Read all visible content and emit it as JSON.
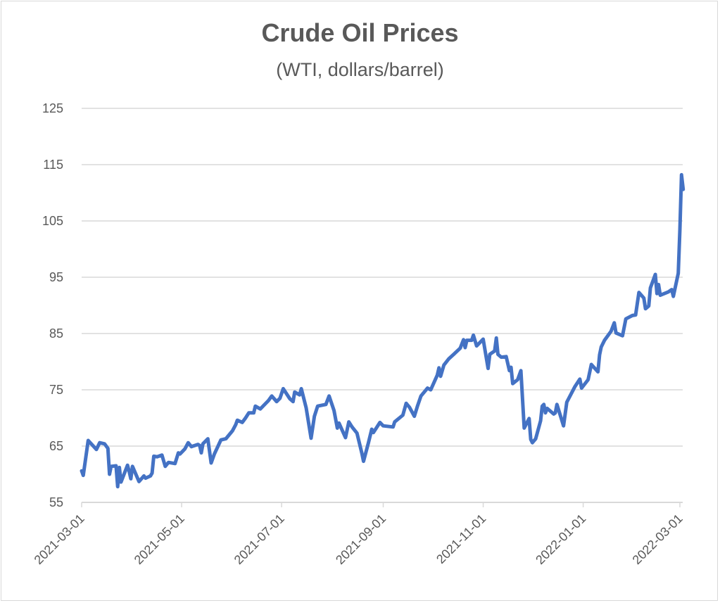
{
  "chart_data": {
    "type": "line",
    "title": "Crude Oil Prices",
    "subtitle": "(WTI, dollars/barrel)",
    "xlabel": "",
    "ylabel": "",
    "ylim": [
      55,
      125
    ],
    "yticks": [
      "55",
      "65",
      "75",
      "85",
      "95",
      "105",
      "115",
      "125"
    ],
    "xlim": [
      "2021-03-01",
      "2022-03-01"
    ],
    "xticks": [
      "2021-03-01",
      "2021-05-01",
      "2021-07-01",
      "2021-09-01",
      "2021-11-01",
      "2022-01-01",
      "2022-03-01"
    ],
    "grid": true,
    "legend": "none",
    "color": "#4472C4",
    "series": [
      {
        "name": "WTI",
        "points": [
          [
            "2021-03-01",
            60.6
          ],
          [
            "2021-03-02",
            59.8
          ],
          [
            "2021-03-05",
            66.0
          ],
          [
            "2021-03-10",
            64.4
          ],
          [
            "2021-03-12",
            65.6
          ],
          [
            "2021-03-15",
            65.4
          ],
          [
            "2021-03-17",
            64.6
          ],
          [
            "2021-03-18",
            60.0
          ],
          [
            "2021-03-19",
            61.4
          ],
          [
            "2021-03-22",
            61.5
          ],
          [
            "2021-03-23",
            57.8
          ],
          [
            "2021-03-24",
            61.2
          ],
          [
            "2021-03-25",
            58.6
          ],
          [
            "2021-03-29",
            61.6
          ],
          [
            "2021-03-30",
            60.5
          ],
          [
            "2021-03-31",
            59.2
          ],
          [
            "2021-04-01",
            61.4
          ],
          [
            "2021-04-05",
            58.7
          ],
          [
            "2021-04-08",
            59.7
          ],
          [
            "2021-04-09",
            59.3
          ],
          [
            "2021-04-12",
            59.7
          ],
          [
            "2021-04-13",
            60.2
          ],
          [
            "2021-04-14",
            63.2
          ],
          [
            "2021-04-16",
            63.1
          ],
          [
            "2021-04-19",
            63.4
          ],
          [
            "2021-04-21",
            61.4
          ],
          [
            "2021-04-23",
            62.1
          ],
          [
            "2021-04-27",
            61.9
          ],
          [
            "2021-04-29",
            63.8
          ],
          [
            "2021-04-30",
            63.6
          ],
          [
            "2021-05-03",
            64.5
          ],
          [
            "2021-05-05",
            65.6
          ],
          [
            "2021-05-07",
            64.9
          ],
          [
            "2021-05-11",
            65.3
          ],
          [
            "2021-05-12",
            65.1
          ],
          [
            "2021-05-13",
            63.8
          ],
          [
            "2021-05-14",
            65.4
          ],
          [
            "2021-05-17",
            66.3
          ],
          [
            "2021-05-19",
            62.0
          ],
          [
            "2021-05-21",
            63.6
          ],
          [
            "2021-05-25",
            66.1
          ],
          [
            "2021-05-28",
            66.3
          ],
          [
            "2021-06-01",
            67.7
          ],
          [
            "2021-06-03",
            68.8
          ],
          [
            "2021-06-04",
            69.6
          ],
          [
            "2021-06-07",
            69.2
          ],
          [
            "2021-06-09",
            70.0
          ],
          [
            "2021-06-11",
            70.9
          ],
          [
            "2021-06-14",
            70.9
          ],
          [
            "2021-06-15",
            72.1
          ],
          [
            "2021-06-18",
            71.6
          ],
          [
            "2021-06-23",
            73.1
          ],
          [
            "2021-06-25",
            73.9
          ],
          [
            "2021-06-28",
            72.9
          ],
          [
            "2021-06-30",
            73.5
          ],
          [
            "2021-07-02",
            75.2
          ],
          [
            "2021-07-06",
            73.4
          ],
          [
            "2021-07-08",
            72.9
          ],
          [
            "2021-07-09",
            74.6
          ],
          [
            "2021-07-12",
            74.1
          ],
          [
            "2021-07-13",
            75.2
          ],
          [
            "2021-07-16",
            71.8
          ],
          [
            "2021-07-19",
            66.4
          ],
          [
            "2021-07-21",
            70.3
          ],
          [
            "2021-07-23",
            72.1
          ],
          [
            "2021-07-28",
            72.4
          ],
          [
            "2021-07-30",
            73.9
          ],
          [
            "2021-08-02",
            71.3
          ],
          [
            "2021-08-04",
            68.2
          ],
          [
            "2021-08-05",
            69.1
          ],
          [
            "2021-08-09",
            66.5
          ],
          [
            "2021-08-11",
            69.3
          ],
          [
            "2021-08-13",
            68.4
          ],
          [
            "2021-08-16",
            67.3
          ],
          [
            "2021-08-19",
            63.7
          ],
          [
            "2021-08-20",
            62.3
          ],
          [
            "2021-08-23",
            65.6
          ],
          [
            "2021-08-25",
            68.0
          ],
          [
            "2021-08-26",
            67.4
          ],
          [
            "2021-08-30",
            69.2
          ],
          [
            "2021-09-01",
            68.6
          ],
          [
            "2021-09-07",
            68.4
          ],
          [
            "2021-09-08",
            69.3
          ],
          [
            "2021-09-13",
            70.5
          ],
          [
            "2021-09-15",
            72.6
          ],
          [
            "2021-09-17",
            71.9
          ],
          [
            "2021-09-20",
            70.3
          ],
          [
            "2021-09-22",
            72.2
          ],
          [
            "2021-09-24",
            73.9
          ],
          [
            "2021-09-28",
            75.3
          ],
          [
            "2021-09-30",
            75.0
          ],
          [
            "2021-10-04",
            77.6
          ],
          [
            "2021-10-05",
            78.9
          ],
          [
            "2021-10-06",
            77.4
          ],
          [
            "2021-10-08",
            79.4
          ],
          [
            "2021-10-11",
            80.5
          ],
          [
            "2021-10-14",
            81.3
          ],
          [
            "2021-10-18",
            82.4
          ],
          [
            "2021-10-20",
            83.9
          ],
          [
            "2021-10-21",
            82.5
          ],
          [
            "2021-10-22",
            83.8
          ],
          [
            "2021-10-25",
            83.8
          ],
          [
            "2021-10-26",
            84.7
          ],
          [
            "2021-10-28",
            82.8
          ],
          [
            "2021-11-01",
            84.0
          ],
          [
            "2021-11-04",
            78.8
          ],
          [
            "2021-11-05",
            81.3
          ],
          [
            "2021-11-08",
            81.9
          ],
          [
            "2021-11-09",
            84.2
          ],
          [
            "2021-11-10",
            81.3
          ],
          [
            "2021-11-12",
            80.8
          ],
          [
            "2021-11-15",
            80.9
          ],
          [
            "2021-11-17",
            78.4
          ],
          [
            "2021-11-18",
            79.0
          ],
          [
            "2021-11-19",
            76.1
          ],
          [
            "2021-11-22",
            76.8
          ],
          [
            "2021-11-24",
            78.4
          ],
          [
            "2021-11-26",
            68.2
          ],
          [
            "2021-11-29",
            69.9
          ],
          [
            "2021-11-30",
            66.2
          ],
          [
            "2021-12-01",
            65.6
          ],
          [
            "2021-12-03",
            66.3
          ],
          [
            "2021-12-06",
            69.5
          ],
          [
            "2021-12-07",
            72.1
          ],
          [
            "2021-12-08",
            72.4
          ],
          [
            "2021-12-09",
            70.9
          ],
          [
            "2021-12-10",
            71.7
          ],
          [
            "2021-12-14",
            70.7
          ],
          [
            "2021-12-15",
            70.9
          ],
          [
            "2021-12-16",
            72.4
          ],
          [
            "2021-12-20",
            68.6
          ],
          [
            "2021-12-22",
            72.8
          ],
          [
            "2021-12-27",
            75.6
          ],
          [
            "2021-12-30",
            76.9
          ],
          [
            "2021-12-31",
            75.3
          ],
          [
            "2022-01-04",
            76.8
          ],
          [
            "2022-01-06",
            79.5
          ],
          [
            "2022-01-10",
            78.2
          ],
          [
            "2022-01-11",
            81.2
          ],
          [
            "2022-01-12",
            82.6
          ],
          [
            "2022-01-14",
            83.8
          ],
          [
            "2022-01-18",
            85.4
          ],
          [
            "2022-01-20",
            86.9
          ],
          [
            "2022-01-21",
            85.1
          ],
          [
            "2022-01-25",
            84.6
          ],
          [
            "2022-01-27",
            87.6
          ],
          [
            "2022-01-31",
            88.2
          ],
          [
            "2022-02-02",
            88.3
          ],
          [
            "2022-02-04",
            92.3
          ],
          [
            "2022-02-07",
            91.3
          ],
          [
            "2022-02-08",
            89.4
          ],
          [
            "2022-02-10",
            89.9
          ],
          [
            "2022-02-11",
            93.1
          ],
          [
            "2022-02-14",
            95.5
          ],
          [
            "2022-02-15",
            92.1
          ],
          [
            "2022-02-16",
            93.7
          ],
          [
            "2022-02-17",
            91.8
          ],
          [
            "2022-02-22",
            92.4
          ],
          [
            "2022-02-24",
            92.8
          ],
          [
            "2022-02-25",
            91.6
          ],
          [
            "2022-02-28",
            95.7
          ],
          [
            "2022-03-01",
            103.4
          ],
          [
            "2022-03-02",
            113.2
          ],
          [
            "2022-03-03",
            110.6
          ]
        ]
      }
    ]
  }
}
